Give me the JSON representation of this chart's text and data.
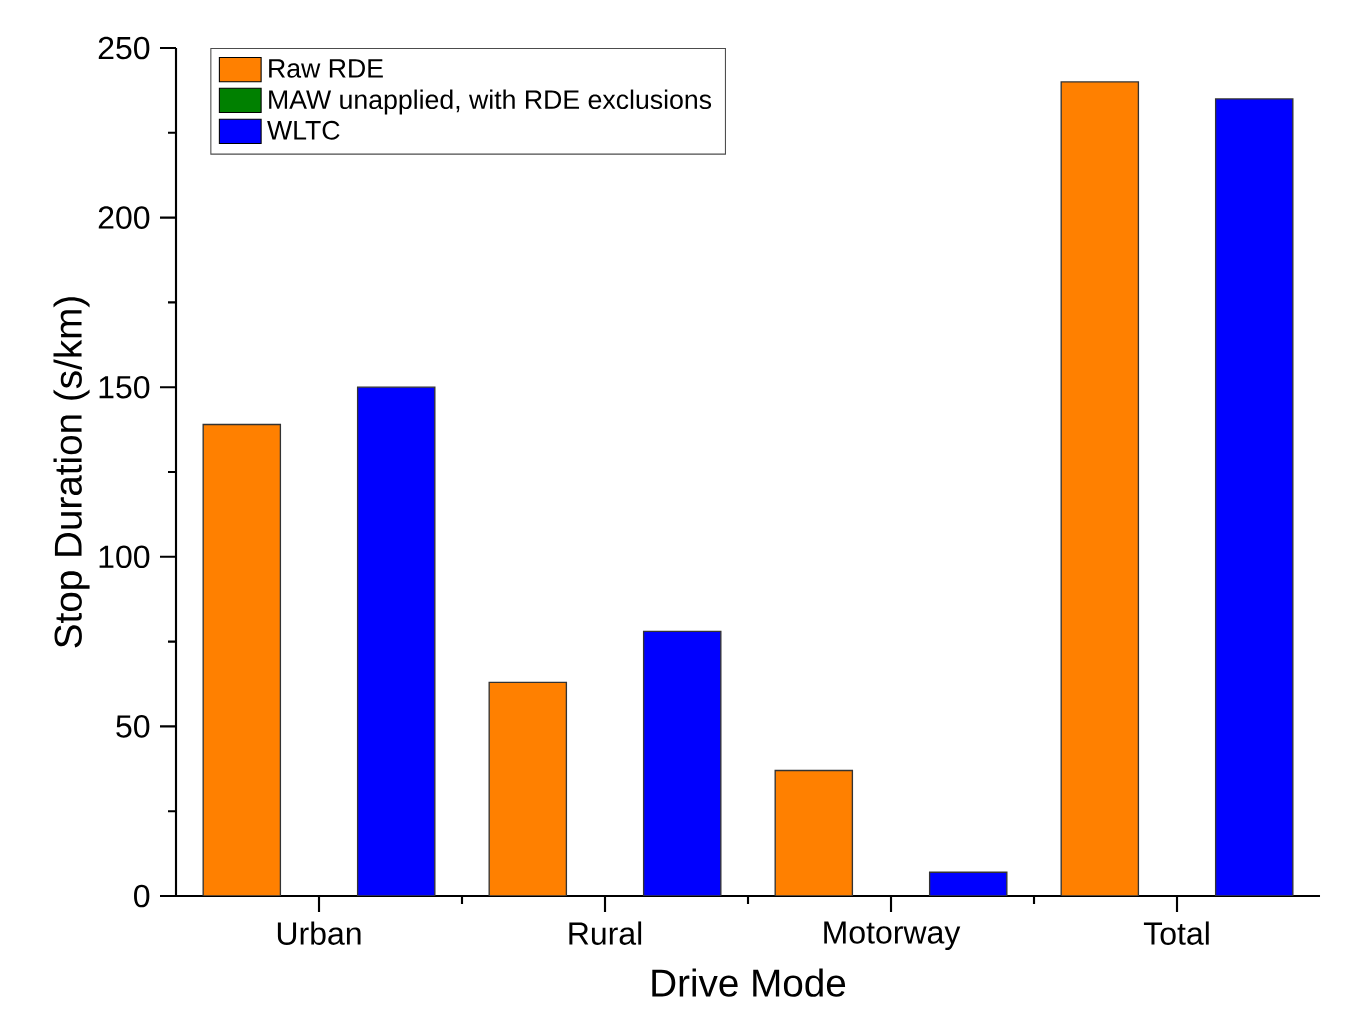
{
  "chart_data": {
    "type": "bar",
    "xlabel": "Drive Mode",
    "ylabel": "Stop Duration (s/km)",
    "categories": [
      "Urban",
      "Rural",
      "Motorway",
      "Total"
    ],
    "series": [
      {
        "name": "Raw RDE",
        "color": "#ff8000",
        "values": [
          139,
          63,
          37,
          240
        ]
      },
      {
        "name": "MAW unapplied, with RDE exclusions",
        "color": "#008000",
        "values": [
          null,
          null,
          null,
          null
        ]
      },
      {
        "name": "WLTC",
        "color": "#0000ff",
        "values": [
          150,
          78,
          7,
          235
        ]
      }
    ],
    "ylim": [
      0,
      250
    ],
    "yticks": [
      0,
      50,
      100,
      150,
      200,
      250
    ],
    "legend": "top left",
    "grid": false
  }
}
